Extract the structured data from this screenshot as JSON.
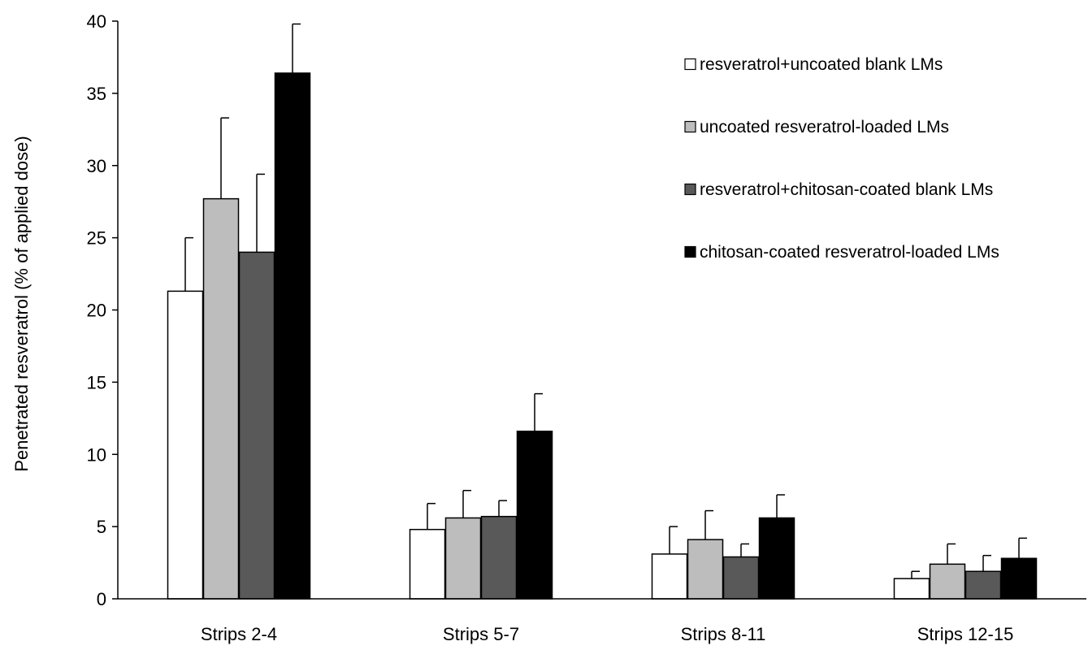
{
  "chart_data": {
    "type": "bar",
    "ylabel": "Penetrated resveratrol  (% of applied dose)",
    "xlabel": "",
    "ylim": [
      0,
      40
    ],
    "yticks": [
      0,
      5,
      10,
      15,
      20,
      25,
      30,
      35,
      40
    ],
    "grid": false,
    "legend_position": "top-right",
    "categories": [
      "Strips 2-4",
      "Strips 5-7",
      "Strips 8-11",
      "Strips 12-15"
    ],
    "series": [
      {
        "name": "resveratrol+uncoated blank LMs",
        "color": "#ffffff",
        "values": [
          21.3,
          4.8,
          3.1,
          1.4
        ],
        "errors": [
          3.7,
          1.8,
          1.9,
          0.5
        ]
      },
      {
        "name": "uncoated resveratrol-loaded LMs",
        "color": "#bdbdbd",
        "values": [
          27.7,
          5.6,
          4.1,
          2.4
        ],
        "errors": [
          5.6,
          1.9,
          2.0,
          1.4
        ]
      },
      {
        "name": "resveratrol+chitosan-coated blank LMs",
        "color": "#595959",
        "values": [
          24.0,
          5.7,
          2.9,
          1.9
        ],
        "errors": [
          5.4,
          1.1,
          0.9,
          1.1
        ]
      },
      {
        "name": "chitosan-coated resveratrol-loaded LMs",
        "color": "#000000",
        "values": [
          36.4,
          11.6,
          5.6,
          2.8
        ],
        "errors": [
          3.4,
          2.6,
          1.6,
          1.4
        ]
      }
    ]
  }
}
